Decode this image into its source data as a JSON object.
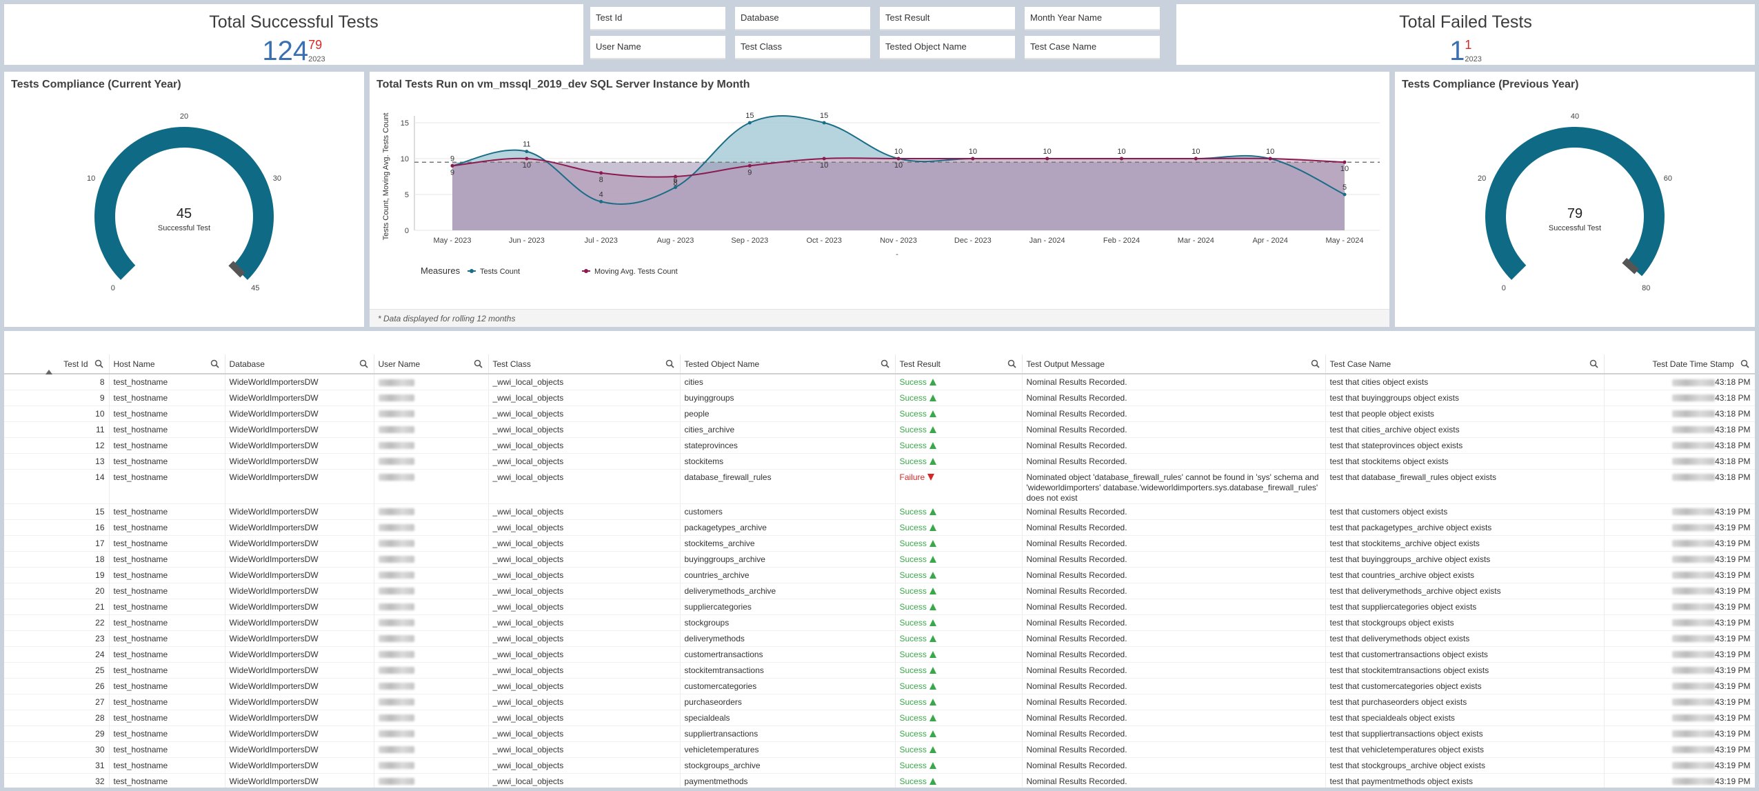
{
  "kpi_success": {
    "title": "Total Successful Tests",
    "value": "124",
    "sup": "79",
    "year": "2023"
  },
  "kpi_failed": {
    "title": "Total Failed Tests",
    "value": "1",
    "sup": "1",
    "year": "2023"
  },
  "filters": [
    "Test Id",
    "Database",
    "Test Result",
    "Month Year Name",
    "User Name",
    "Test Class",
    "Tested Object Name",
    "Test Case Name"
  ],
  "gauge_current": {
    "title": "Tests Compliance (Current Year)",
    "value": "45",
    "label": "Successful Test",
    "ticks": [
      "0",
      "10",
      "20",
      "30",
      "45"
    ],
    "fraction": 1.0,
    "color": "#0f6b85"
  },
  "gauge_previous": {
    "title": "Tests Compliance (Previous Year)",
    "value": "79",
    "label": "Successful Test",
    "ticks": [
      "0",
      "20",
      "40",
      "60",
      "80"
    ],
    "fraction": 0.9875,
    "color": "#0f6b85"
  },
  "chart_panel": {
    "title": "Total Tests Run on vm_mssql_2019_dev SQL Server Instance by Month",
    "footnote": "* Data displayed for rolling 12 months",
    "legend_title": "Measures",
    "xaxis_dash": "-"
  },
  "chart_data": {
    "type": "area",
    "categories": [
      "May - 2023",
      "Jun - 2023",
      "Jul - 2023",
      "Aug - 2023",
      "Sep - 2023",
      "Oct - 2023",
      "Nov - 2023",
      "Dec - 2023",
      "Jan - 2024",
      "Feb - 2024",
      "Mar - 2024",
      "Apr - 2024",
      "May - 2024"
    ],
    "series": [
      {
        "name": "Tests Count",
        "values": [
          9,
          11,
          4,
          6,
          15,
          15,
          10,
          10,
          10,
          10,
          10,
          10,
          5
        ],
        "color": "#1b6d87",
        "fill": "#a9cdd8"
      },
      {
        "name": "Moving Avg. Tests Count",
        "values": [
          9,
          10,
          8,
          7.5,
          9,
          10,
          10,
          10,
          10,
          10,
          10,
          10,
          9.5
        ],
        "color": "#8b1a50",
        "fill": "#d7b3c8"
      }
    ],
    "series_labels": [
      [
        "9",
        "11",
        "4",
        "6",
        "15",
        "15",
        "10",
        "10",
        "10",
        "10",
        "10",
        "10",
        "5"
      ],
      [
        "9",
        "10",
        "8",
        "8",
        "9",
        "10",
        "10",
        "",
        "",
        "",
        "",
        "",
        "10"
      ]
    ],
    "reference_line": 9.5,
    "ylabel": "Tests Count, Moving Avg. Tests Count",
    "yticks": [
      "0",
      "5",
      "10",
      "15"
    ],
    "ylim": [
      0,
      15
    ],
    "grid": true,
    "legend": "bottom-left"
  },
  "table": {
    "columns": [
      "Test Id",
      "Host Name",
      "Database",
      "User Name",
      "Test Class",
      "Tested Object Name",
      "Test Result",
      "Test Output Message",
      "Test Case Name",
      "Test Date Time Stamp"
    ],
    "rows": [
      [
        "8",
        "test_hostname",
        "WideWorldImportersDW",
        "",
        "_wwi_local_objects",
        "cities",
        "Sucess",
        "Nominal Results Recorded.",
        "test that cities object exists",
        "43:18 PM"
      ],
      [
        "9",
        "test_hostname",
        "WideWorldImportersDW",
        "",
        "_wwi_local_objects",
        "buyinggroups",
        "Sucess",
        "Nominal Results Recorded.",
        "test that buyinggroups object exists",
        "43:18 PM"
      ],
      [
        "10",
        "test_hostname",
        "WideWorldImportersDW",
        "",
        "_wwi_local_objects",
        "people",
        "Sucess",
        "Nominal Results Recorded.",
        "test that people object exists",
        "43:18 PM"
      ],
      [
        "11",
        "test_hostname",
        "WideWorldImportersDW",
        "",
        "_wwi_local_objects",
        "cities_archive",
        "Sucess",
        "Nominal Results Recorded.",
        "test that cities_archive object exists",
        "43:18 PM"
      ],
      [
        "12",
        "test_hostname",
        "WideWorldImportersDW",
        "",
        "_wwi_local_objects",
        "stateprovinces",
        "Sucess",
        "Nominal Results Recorded.",
        "test that stateprovinces object exists",
        "43:18 PM"
      ],
      [
        "13",
        "test_hostname",
        "WideWorldImportersDW",
        "",
        "_wwi_local_objects",
        "stockitems",
        "Sucess",
        "Nominal Results Recorded.",
        "test that stockitems object exists",
        "43:18 PM"
      ],
      [
        "14",
        "test_hostname",
        "WideWorldImportersDW",
        "",
        "_wwi_local_objects",
        "database_firewall_rules",
        "Failure",
        "Nominated object 'database_firewall_rules' cannot be found in 'sys' schema and 'wideworldimporters' database.'wideworldimporters.sys.database_firewall_rules' does not exist",
        "test that database_firewall_rules object exists",
        "43:18 PM"
      ],
      [
        "15",
        "test_hostname",
        "WideWorldImportersDW",
        "",
        "_wwi_local_objects",
        "customers",
        "Sucess",
        "Nominal Results Recorded.",
        "test that customers object exists",
        "43:19 PM"
      ],
      [
        "16",
        "test_hostname",
        "WideWorldImportersDW",
        "",
        "_wwi_local_objects",
        "packagetypes_archive",
        "Sucess",
        "Nominal Results Recorded.",
        "test that packagetypes_archive object exists",
        "43:19 PM"
      ],
      [
        "17",
        "test_hostname",
        "WideWorldImportersDW",
        "",
        "_wwi_local_objects",
        "stockitems_archive",
        "Sucess",
        "Nominal Results Recorded.",
        "test that stockitems_archive object exists",
        "43:19 PM"
      ],
      [
        "18",
        "test_hostname",
        "WideWorldImportersDW",
        "",
        "_wwi_local_objects",
        "buyinggroups_archive",
        "Sucess",
        "Nominal Results Recorded.",
        "test that buyinggroups_archive object exists",
        "43:19 PM"
      ],
      [
        "19",
        "test_hostname",
        "WideWorldImportersDW",
        "",
        "_wwi_local_objects",
        "countries_archive",
        "Sucess",
        "Nominal Results Recorded.",
        "test that countries_archive object exists",
        "43:19 PM"
      ],
      [
        "20",
        "test_hostname",
        "WideWorldImportersDW",
        "",
        "_wwi_local_objects",
        "deliverymethods_archive",
        "Sucess",
        "Nominal Results Recorded.",
        "test that deliverymethods_archive object exists",
        "43:19 PM"
      ],
      [
        "21",
        "test_hostname",
        "WideWorldImportersDW",
        "",
        "_wwi_local_objects",
        "suppliercategories",
        "Sucess",
        "Nominal Results Recorded.",
        "test that suppliercategories object exists",
        "43:19 PM"
      ],
      [
        "22",
        "test_hostname",
        "WideWorldImportersDW",
        "",
        "_wwi_local_objects",
        "stockgroups",
        "Sucess",
        "Nominal Results Recorded.",
        "test that stockgroups object exists",
        "43:19 PM"
      ],
      [
        "23",
        "test_hostname",
        "WideWorldImportersDW",
        "",
        "_wwi_local_objects",
        "deliverymethods",
        "Sucess",
        "Nominal Results Recorded.",
        "test that deliverymethods object exists",
        "43:19 PM"
      ],
      [
        "24",
        "test_hostname",
        "WideWorldImportersDW",
        "",
        "_wwi_local_objects",
        "customertransactions",
        "Sucess",
        "Nominal Results Recorded.",
        "test that customertransactions object exists",
        "43:19 PM"
      ],
      [
        "25",
        "test_hostname",
        "WideWorldImportersDW",
        "",
        "_wwi_local_objects",
        "stockitemtransactions",
        "Sucess",
        "Nominal Results Recorded.",
        "test that stockitemtransactions object exists",
        "43:19 PM"
      ],
      [
        "26",
        "test_hostname",
        "WideWorldImportersDW",
        "",
        "_wwi_local_objects",
        "customercategories",
        "Sucess",
        "Nominal Results Recorded.",
        "test that customercategories object exists",
        "43:19 PM"
      ],
      [
        "27",
        "test_hostname",
        "WideWorldImportersDW",
        "",
        "_wwi_local_objects",
        "purchaseorders",
        "Sucess",
        "Nominal Results Recorded.",
        "test that purchaseorders object exists",
        "43:19 PM"
      ],
      [
        "28",
        "test_hostname",
        "WideWorldImportersDW",
        "",
        "_wwi_local_objects",
        "specialdeals",
        "Sucess",
        "Nominal Results Recorded.",
        "test that specialdeals object exists",
        "43:19 PM"
      ],
      [
        "29",
        "test_hostname",
        "WideWorldImportersDW",
        "",
        "_wwi_local_objects",
        "suppliertransactions",
        "Sucess",
        "Nominal Results Recorded.",
        "test that suppliertransactions object exists",
        "43:19 PM"
      ],
      [
        "30",
        "test_hostname",
        "WideWorldImportersDW",
        "",
        "_wwi_local_objects",
        "vehicletemperatures",
        "Sucess",
        "Nominal Results Recorded.",
        "test that vehicletemperatures object exists",
        "43:19 PM"
      ],
      [
        "31",
        "test_hostname",
        "WideWorldImportersDW",
        "",
        "_wwi_local_objects",
        "stockgroups_archive",
        "Sucess",
        "Nominal Results Recorded.",
        "test that stockgroups_archive object exists",
        "43:19 PM"
      ],
      [
        "32",
        "test_hostname",
        "WideWorldImportersDW",
        "",
        "_wwi_local_objects",
        "paymentmethods",
        "Sucess",
        "Nominal Results Recorded.",
        "test that paymentmethods object exists",
        "43:19 PM"
      ]
    ]
  }
}
